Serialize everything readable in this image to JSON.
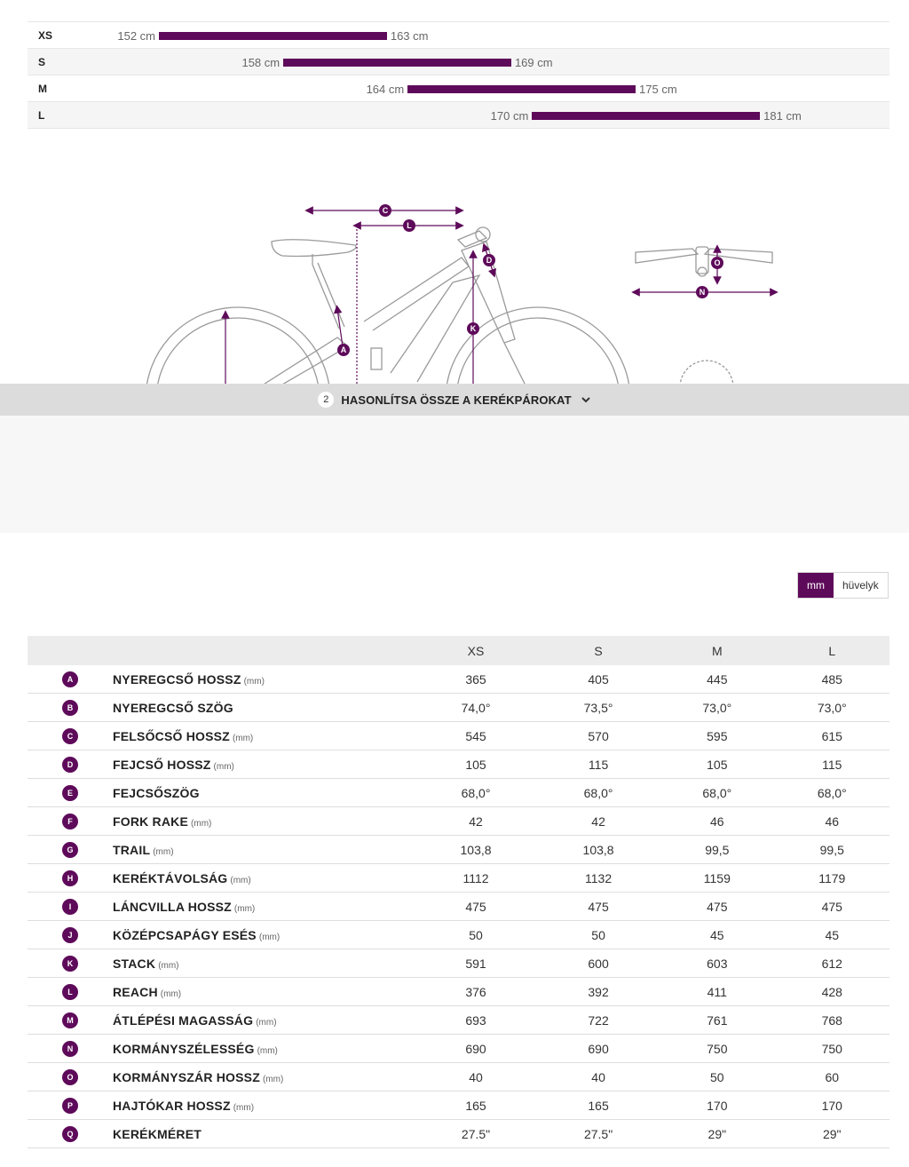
{
  "size_chart": {
    "rows": [
      {
        "size": "XS",
        "min": "152 cm",
        "max": "163 cm",
        "min_cm": 152,
        "max_cm": 163
      },
      {
        "size": "S",
        "min": "158 cm",
        "max": "169 cm",
        "min_cm": 158,
        "max_cm": 169
      },
      {
        "size": "M",
        "min": "164 cm",
        "max": "175 cm",
        "min_cm": 164,
        "max_cm": 175
      },
      {
        "size": "L",
        "min": "170 cm",
        "max": "181 cm",
        "min_cm": 170,
        "max_cm": 181
      }
    ]
  },
  "diagram": {
    "labels": {
      "a": "A",
      "c": "C",
      "d": "D",
      "k": "K",
      "l": "L",
      "n": "N",
      "o": "O"
    }
  },
  "compare": {
    "number": "2",
    "label": "HASONLÍTSA ÖSSZE A KERÉKPÁROKAT"
  },
  "units": {
    "mm": "mm",
    "inch": "hüvelyk",
    "active": "mm"
  },
  "table": {
    "sizes": [
      "XS",
      "S",
      "M",
      "L"
    ],
    "rows": [
      {
        "badge": "A",
        "name": "NYEREGCSŐ HOSSZ",
        "unit": "(mm)",
        "values": [
          "365",
          "405",
          "445",
          "485"
        ]
      },
      {
        "badge": "B",
        "name": "NYEREGCSŐ SZÖG",
        "unit": "",
        "values": [
          "74,0°",
          "73,5°",
          "73,0°",
          "73,0°"
        ]
      },
      {
        "badge": "C",
        "name": "FELSŐCSŐ HOSSZ",
        "unit": "(mm)",
        "values": [
          "545",
          "570",
          "595",
          "615"
        ]
      },
      {
        "badge": "D",
        "name": "FEJCSŐ HOSSZ",
        "unit": "(mm)",
        "values": [
          "105",
          "115",
          "105",
          "115"
        ]
      },
      {
        "badge": "E",
        "name": "FEJCSŐSZÖG",
        "unit": "",
        "values": [
          "68,0°",
          "68,0°",
          "68,0°",
          "68,0°"
        ]
      },
      {
        "badge": "F",
        "name": "FORK RAKE",
        "unit": "(mm)",
        "values": [
          "42",
          "42",
          "46",
          "46"
        ]
      },
      {
        "badge": "G",
        "name": "TRAIL",
        "unit": "(mm)",
        "values": [
          "103,8",
          "103,8",
          "99,5",
          "99,5"
        ]
      },
      {
        "badge": "H",
        "name": "KERÉKTÁVOLSÁG",
        "unit": "(mm)",
        "values": [
          "1112",
          "1132",
          "1159",
          "1179"
        ]
      },
      {
        "badge": "I",
        "name": "LÁNCVILLA HOSSZ",
        "unit": "(mm)",
        "values": [
          "475",
          "475",
          "475",
          "475"
        ]
      },
      {
        "badge": "J",
        "name": "KÖZÉPCSAPÁGY ESÉS",
        "unit": "(mm)",
        "values": [
          "50",
          "50",
          "45",
          "45"
        ]
      },
      {
        "badge": "K",
        "name": "STACK",
        "unit": "(mm)",
        "values": [
          "591",
          "600",
          "603",
          "612"
        ]
      },
      {
        "badge": "L",
        "name": "REACH",
        "unit": "(mm)",
        "values": [
          "376",
          "392",
          "411",
          "428"
        ]
      },
      {
        "badge": "M",
        "name": "ÁTLÉPÉSI MAGASSÁG",
        "unit": "(mm)",
        "values": [
          "693",
          "722",
          "761",
          "768"
        ]
      },
      {
        "badge": "N",
        "name": "KORMÁNYSZÉLESSÉG",
        "unit": "(mm)",
        "values": [
          "690",
          "690",
          "750",
          "750"
        ]
      },
      {
        "badge": "O",
        "name": "KORMÁNYSZÁR HOSSZ",
        "unit": "(mm)",
        "values": [
          "40",
          "40",
          "50",
          "60"
        ]
      },
      {
        "badge": "P",
        "name": "HAJTÓKAR HOSSZ",
        "unit": "(mm)",
        "values": [
          "165",
          "165",
          "170",
          "170"
        ]
      },
      {
        "badge": "Q",
        "name": "KERÉKMÉRET",
        "unit": "",
        "values": [
          "27.5\"",
          "27.5\"",
          "29\"",
          "29\""
        ]
      }
    ]
  },
  "colors": {
    "accent": "#5e0a5a",
    "row_border": "#dedede",
    "header_bg": "#ececec",
    "compare_bg": "#dcdcdc"
  }
}
